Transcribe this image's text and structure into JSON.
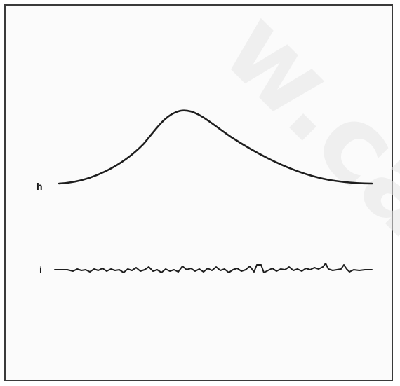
{
  "traces": {
    "h": {
      "label": "h",
      "kind": "single-peak-curve"
    },
    "i": {
      "label": "i",
      "kind": "noisy-flat-line"
    }
  },
  "watermark": {
    "text": "w.ca"
  },
  "colors": {
    "line": "#1e1e1e",
    "frame": "#3a3a3a",
    "background": "#fbfbfb",
    "watermark": "#e6e6e6"
  }
}
